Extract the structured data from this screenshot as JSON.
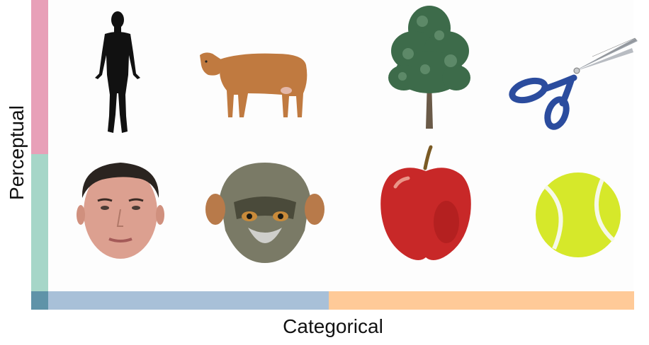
{
  "axes": {
    "x_label": "Categorical",
    "y_label": "Perceptual"
  },
  "colors": {
    "perceptual_top": "#e8a0b8",
    "perceptual_bottom": "#a6d6c8",
    "corner": "#5f93a8",
    "categorical_left": "#a8c0d8",
    "categorical_right": "#ffca98"
  },
  "images": {
    "row_top": [
      "human-body-silhouette",
      "cow",
      "tree",
      "scissors"
    ],
    "row_bottom": [
      "human-face",
      "monkey-face",
      "apple",
      "tennis-ball"
    ]
  }
}
